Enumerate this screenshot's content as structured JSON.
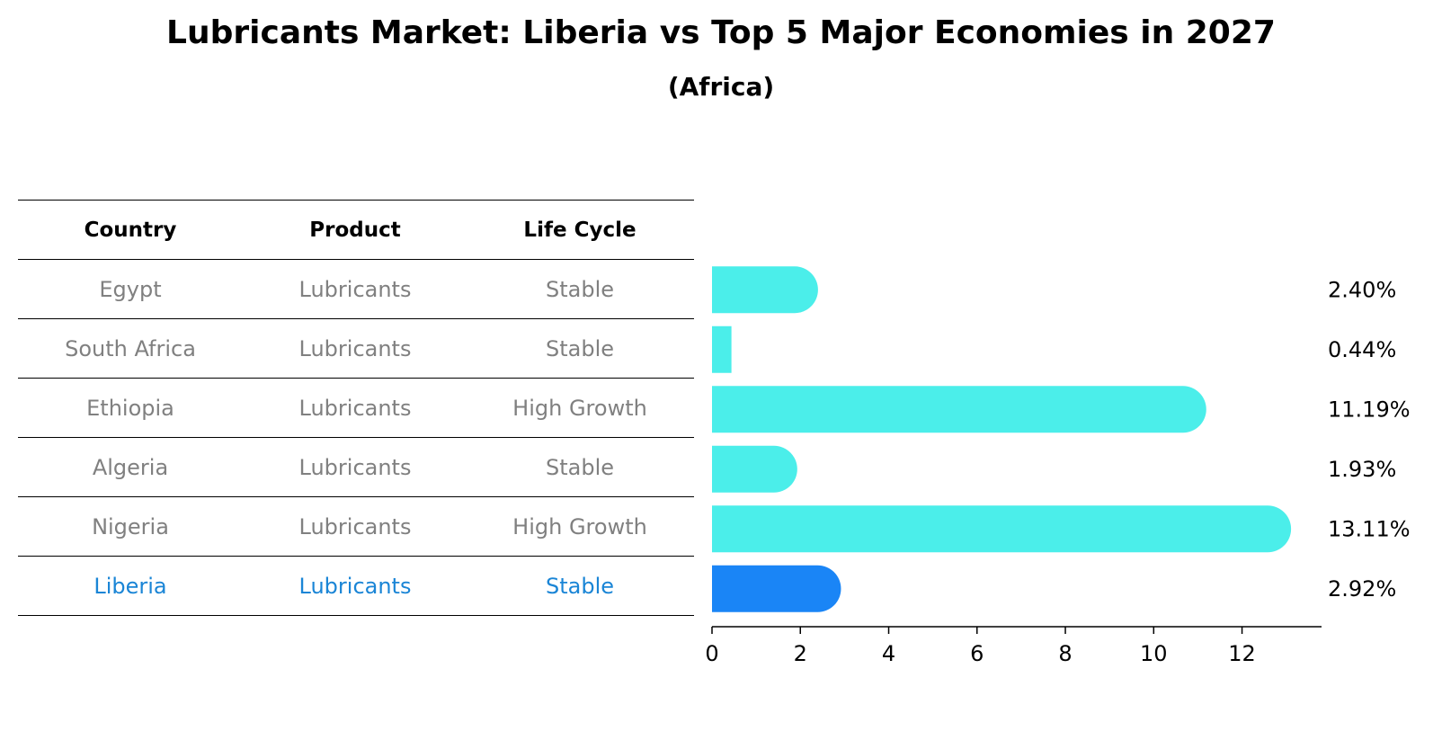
{
  "title": "Lubricants Market: Liberia vs Top 5 Major Economies in 2027",
  "subtitle": "(Africa)",
  "table": {
    "headers": [
      "Country",
      "Product",
      "Life Cycle"
    ],
    "rows": [
      {
        "country": "Egypt",
        "product": "Lubricants",
        "life_cycle": "Stable"
      },
      {
        "country": "South Africa",
        "product": "Lubricants",
        "life_cycle": "Stable"
      },
      {
        "country": "Ethiopia",
        "product": "Lubricants",
        "life_cycle": "High Growth"
      },
      {
        "country": "Algeria",
        "product": "Lubricants",
        "life_cycle": "Stable"
      },
      {
        "country": "Nigeria",
        "product": "Lubricants",
        "life_cycle": "High Growth"
      },
      {
        "country": "Liberia",
        "product": "Lubricants",
        "life_cycle": "Stable"
      }
    ]
  },
  "colors": {
    "bar": "#4beeea",
    "highlight_bar": "#1a85f6",
    "highlight_text": "#1a85d6",
    "muted_text": "#808080"
  },
  "chart_data": {
    "type": "bar",
    "orientation": "horizontal",
    "categories": [
      "Egypt",
      "South Africa",
      "Ethiopia",
      "Algeria",
      "Nigeria",
      "Liberia"
    ],
    "values": [
      2.4,
      0.44,
      11.19,
      1.93,
      13.11,
      2.92
    ],
    "value_labels": [
      "2.40%",
      "0.44%",
      "11.19%",
      "1.93%",
      "13.11%",
      "2.92%"
    ],
    "highlight": "Liberia",
    "xlim": [
      0,
      13.8
    ],
    "xticks": [
      0,
      2,
      4,
      6,
      8,
      10,
      12
    ],
    "xlabel": "",
    "ylabel": ""
  }
}
